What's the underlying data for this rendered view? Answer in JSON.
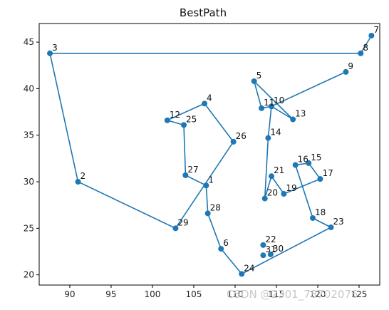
{
  "chart_data": {
    "type": "line",
    "title": "BestPath",
    "xlabel": "",
    "ylabel": "",
    "xlim": [
      86.3,
      127.5
    ],
    "ylim": [
      18.9,
      47.0
    ],
    "xticks": [
      90,
      95,
      100,
      105,
      110,
      115,
      120,
      125
    ],
    "yticks": [
      20,
      25,
      30,
      35,
      40,
      45
    ],
    "grid": false,
    "color": "#1f77b4",
    "markers": true,
    "points": [
      {
        "label": "1",
        "x": 106.5,
        "y": 29.6
      },
      {
        "label": "2",
        "x": 91.0,
        "y": 30.0
      },
      {
        "label": "3",
        "x": 87.6,
        "y": 43.8
      },
      {
        "label": "4",
        "x": 106.3,
        "y": 38.4
      },
      {
        "label": "5",
        "x": 112.3,
        "y": 40.8
      },
      {
        "label": "6",
        "x": 108.3,
        "y": 22.8
      },
      {
        "label": "7",
        "x": 126.5,
        "y": 45.7
      },
      {
        "label": "8",
        "x": 125.2,
        "y": 43.8
      },
      {
        "label": "9",
        "x": 123.4,
        "y": 41.8
      },
      {
        "label": "10",
        "x": 114.4,
        "y": 38.1
      },
      {
        "label": "11",
        "x": 113.2,
        "y": 37.9
      },
      {
        "label": "12",
        "x": 101.8,
        "y": 36.6
      },
      {
        "label": "13",
        "x": 117.0,
        "y": 36.7
      },
      {
        "label": "14",
        "x": 114.0,
        "y": 34.7
      },
      {
        "label": "15",
        "x": 118.9,
        "y": 32.0
      },
      {
        "label": "16",
        "x": 117.3,
        "y": 31.8
      },
      {
        "label": "17",
        "x": 120.3,
        "y": 30.3
      },
      {
        "label": "18",
        "x": 119.4,
        "y": 26.1
      },
      {
        "label": "19",
        "x": 115.9,
        "y": 28.7
      },
      {
        "label": "20",
        "x": 113.6,
        "y": 28.2
      },
      {
        "label": "21",
        "x": 114.4,
        "y": 30.6
      },
      {
        "label": "22",
        "x": 113.4,
        "y": 23.2
      },
      {
        "label": "23",
        "x": 121.6,
        "y": 25.1
      },
      {
        "label": "24",
        "x": 110.8,
        "y": 20.1
      },
      {
        "label": "25",
        "x": 103.8,
        "y": 36.1
      },
      {
        "label": "26",
        "x": 109.8,
        "y": 34.3
      },
      {
        "label": "27",
        "x": 104.0,
        "y": 30.7
      },
      {
        "label": "28",
        "x": 106.7,
        "y": 26.6
      },
      {
        "label": "29",
        "x": 102.8,
        "y": 25.0
      },
      {
        "label": "30",
        "x": 114.3,
        "y": 22.2
      },
      {
        "label": "31",
        "x": 113.4,
        "y": 22.1
      }
    ],
    "path": [
      "7",
      "8",
      "3",
      "2",
      "29",
      "26",
      "4",
      "12",
      "25",
      "27",
      "1",
      "28",
      "6",
      "24",
      "23",
      "18",
      "16",
      "15",
      "17",
      "19",
      "21",
      "20",
      "14",
      "10",
      "11",
      "5",
      "13",
      "10",
      "9"
    ]
  },
  "watermark": "CSDN @2301_78702076"
}
